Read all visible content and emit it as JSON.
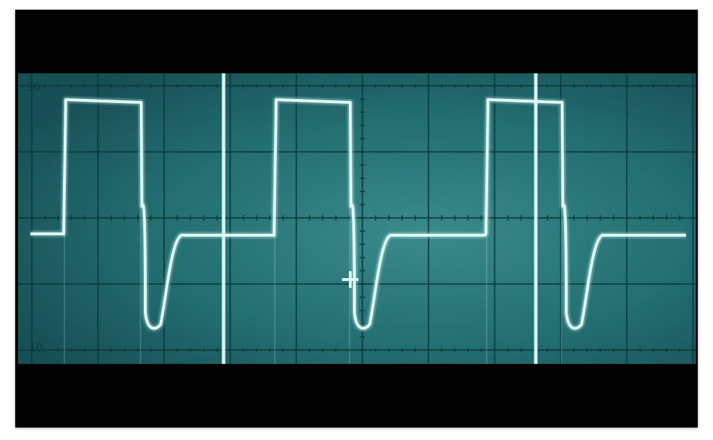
{
  "scope": {
    "scale_top_label": "90",
    "scale_bottom_label": "10",
    "screen_color": "#1f6c6e",
    "grid_color": "#0a3a3c",
    "trace_color": "#dffdf6",
    "frame_color": "#000000",
    "grid": {
      "divisions_x": 10,
      "divisions_y": 8
    },
    "waveform": {
      "description_type": "square-wave-with-undershoot",
      "periods_visible": 3,
      "high_level_pct": 90,
      "low_level_pct": 50,
      "undershoot_pct": 13
    }
  }
}
